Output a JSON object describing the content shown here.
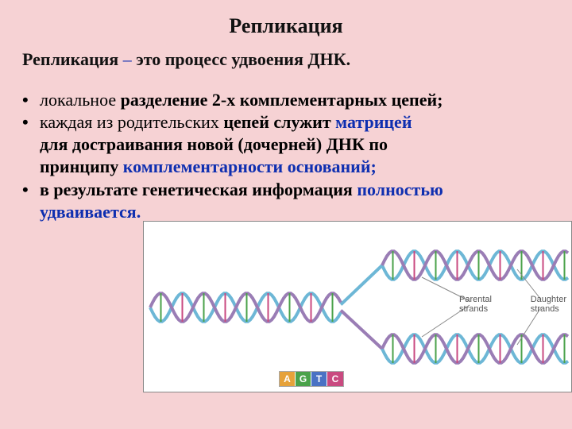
{
  "colors": {
    "slide_bg": "#f6d2d4",
    "diagram_bg": "#ffffff",
    "title_color": "#111111",
    "text_color": "#111111",
    "highlight_color": "#0f2fb0",
    "backbone_a": "#6db7d6",
    "backbone_b": "#9a7db5",
    "rung_a": "#e6a23a",
    "rung_g": "#4aa24a",
    "rung_t": "#4a72c4",
    "rung_c": "#c94a80",
    "label_line": "#888888"
  },
  "title": "Репликация",
  "definition": {
    "term": "Репликация",
    "dash": "  –",
    "rest": " это процесс удвоения ДНК."
  },
  "bullets": [
    {
      "segments": [
        {
          "t": "локальное",
          "w": "n"
        },
        {
          "t": " разделение 2-х комплементарных цепей;",
          "w": "b"
        }
      ]
    },
    {
      "segments": [
        {
          "t": "каждая из  родительских",
          "w": "n"
        },
        {
          "t": " цепей служит ",
          "w": "b"
        },
        {
          "t": "матрицей",
          "w": "b",
          "hl": true
        }
      ],
      "cont": [
        [
          {
            "t": "для достраивания новой (дочерней) ДНК по",
            "w": "b"
          }
        ],
        [
          {
            "t": "принципу ",
            "w": "b"
          },
          {
            "t": " комплементарности оснований;",
            "w": "b",
            "hl": true
          }
        ]
      ]
    },
    {
      "segments": [
        {
          "t": "в результате генетическая информация ",
          "w": "b"
        },
        {
          "t": "полностью",
          "w": "b",
          "hl": true
        }
      ],
      "cont": [
        [
          {
            "t": "удваивается.",
            "w": "b",
            "hl": true
          }
        ]
      ]
    }
  ],
  "legend": [
    {
      "l": "A",
      "c": "#e6a23a"
    },
    {
      "l": "G",
      "c": "#4aa24a"
    },
    {
      "l": "T",
      "c": "#4a72c4"
    },
    {
      "l": "C",
      "c": "#c94a80"
    }
  ],
  "labels": {
    "parental": "Parental\nstrands",
    "daughter": "Daughter\nstrands"
  },
  "helix": {
    "rung_count_parent": 16,
    "rung_count_daughter": 12,
    "amplitude": 18,
    "period": 54,
    "stroke_width_backbone": 4,
    "stroke_width_rung": 2
  }
}
